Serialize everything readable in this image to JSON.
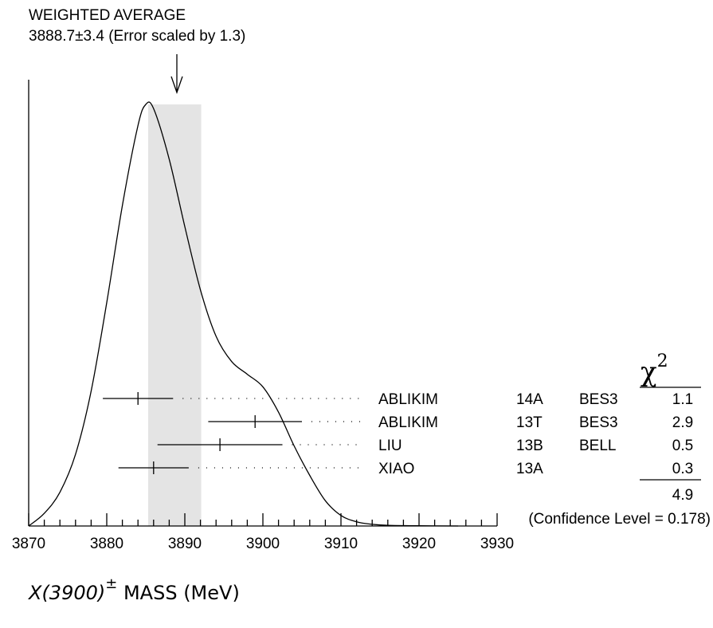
{
  "chart_data": {
    "type": "ideogram",
    "title_line1": "WEIGHTED AVERAGE",
    "title_line2": "3888.7±3.4 (Error scaled by 1.3)",
    "weighted_average": {
      "value": 3888.7,
      "error": 3.4
    },
    "x_axis": {
      "label_main": "X(3900)",
      "label_sup": "±",
      "label_rest": " MASS (MeV)",
      "min": 3870,
      "max": 3930,
      "major_ticks": [
        3870,
        3880,
        3890,
        3900,
        3910,
        3920,
        3930
      ]
    },
    "chi2_header": "χ",
    "chi2_header_sup": "2",
    "measurements": [
      {
        "author": "ABLIKIM",
        "year": "14A",
        "experiment": "BES3",
        "value": 3884.0,
        "low": 3879.5,
        "high": 3888.5,
        "chi2": "1.1"
      },
      {
        "author": "ABLIKIM",
        "year": "13T",
        "experiment": "BES3",
        "value": 3899.0,
        "low": 3893.0,
        "high": 3905.0,
        "chi2": "2.9"
      },
      {
        "author": "LIU",
        "year": "13B",
        "experiment": "BELL",
        "value": 3894.5,
        "low": 3886.5,
        "high": 3902.5,
        "chi2": "0.5"
      },
      {
        "author": "XIAO",
        "year": "13A",
        "experiment": "",
        "value": 3886.0,
        "low": 3881.5,
        "high": 3890.5,
        "chi2": "0.3"
      }
    ],
    "chi2_total": "4.9",
    "confidence_text": "(Confidence Level = 0.178)",
    "ideogram_curve": [
      [
        3870,
        0.0
      ],
      [
        3872,
        0.03
      ],
      [
        3874,
        0.08
      ],
      [
        3876,
        0.17
      ],
      [
        3878,
        0.32
      ],
      [
        3880,
        0.53
      ],
      [
        3882,
        0.76
      ],
      [
        3884,
        0.95
      ],
      [
        3885,
        1.0
      ],
      [
        3886,
        0.99
      ],
      [
        3888,
        0.87
      ],
      [
        3890,
        0.71
      ],
      [
        3892,
        0.56
      ],
      [
        3894,
        0.45
      ],
      [
        3896,
        0.39
      ],
      [
        3898,
        0.36
      ],
      [
        3900,
        0.33
      ],
      [
        3902,
        0.27
      ],
      [
        3904,
        0.19
      ],
      [
        3906,
        0.12
      ],
      [
        3908,
        0.06
      ],
      [
        3910,
        0.025
      ],
      [
        3912,
        0.01
      ],
      [
        3914,
        0.004
      ],
      [
        3916,
        0.0015
      ],
      [
        3920,
        0.0005
      ],
      [
        3925,
        0.0
      ]
    ]
  }
}
